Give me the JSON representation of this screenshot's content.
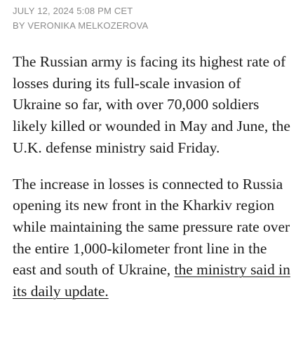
{
  "article": {
    "dateline": "JULY 12, 2024 5:08 PM CET",
    "byline": "BY VERONIKA MELKOZEROVA",
    "paragraph_1": "The Russian army is facing its highest rate of losses during its full-scale invasion of Ukraine so far, with over 70,000 soldiers likely killed or wounded in May and June, the U.K. defense ministry said Friday.",
    "paragraph_2_text": "The increase in losses is connected to Russia opening its new front in the Kharkiv region while maintaining the same pressure rate over the entire 1,000-kilometer front line in the east and south of Ukraine, ",
    "paragraph_2_link": "the ministry said in its daily update."
  }
}
